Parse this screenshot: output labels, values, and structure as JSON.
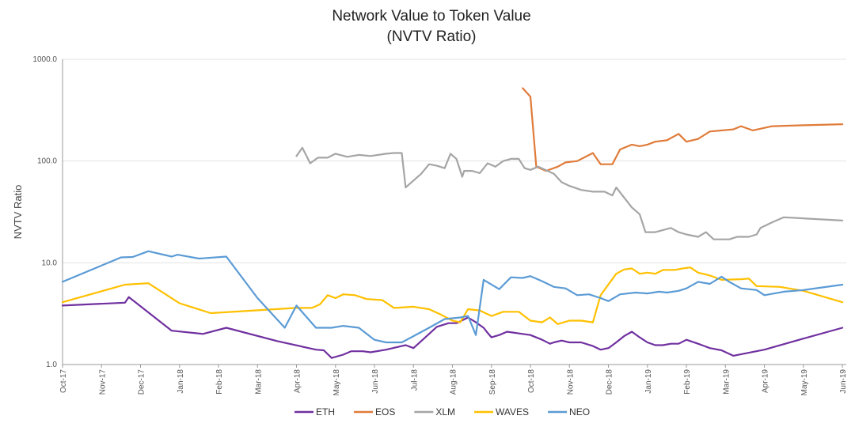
{
  "chart_data": {
    "type": "line",
    "title": "Network Value to Token Value",
    "subtitle": "(NVTV Ratio)",
    "ylabel": "NVTV Ratio",
    "xlabel": "",
    "yscale": "log",
    "ylim": [
      1.0,
      1000.0
    ],
    "yticks": [
      "1.0",
      "10.0",
      "100.0",
      "1000.0"
    ],
    "x_categories": [
      "Oct-17",
      "Nov-17",
      "Dec-17",
      "Jan-18",
      "Feb-18",
      "Mar-18",
      "Apr-18",
      "May-18",
      "Jun-18",
      "Jul-18",
      "Aug-18",
      "Sep-18",
      "Oct-18",
      "Nov-18",
      "Dec-18",
      "Jan-19",
      "Feb-19",
      "Mar-19",
      "Apr-19",
      "May-19",
      "Jun-19"
    ],
    "legend_position": "bottom",
    "series": [
      {
        "name": "ETH",
        "color": "#7030a0",
        "points": [
          [
            0,
            3.8
          ],
          [
            1.6,
            4.05
          ],
          [
            1.7,
            4.6
          ],
          [
            2.8,
            2.15
          ],
          [
            3.6,
            2.0
          ],
          [
            4.2,
            2.3
          ],
          [
            5.5,
            1.7
          ],
          [
            6.5,
            1.4
          ],
          [
            6.7,
            1.38
          ],
          [
            6.9,
            1.16
          ],
          [
            7.2,
            1.25
          ],
          [
            7.4,
            1.35
          ],
          [
            7.7,
            1.35
          ],
          [
            7.9,
            1.32
          ],
          [
            8.3,
            1.4
          ],
          [
            8.8,
            1.55
          ],
          [
            9.0,
            1.45
          ],
          [
            9.2,
            1.7
          ],
          [
            9.4,
            2.0
          ],
          [
            9.6,
            2.35
          ],
          [
            9.9,
            2.55
          ],
          [
            10.1,
            2.55
          ],
          [
            10.4,
            2.9
          ],
          [
            10.6,
            2.6
          ],
          [
            10.8,
            2.3
          ],
          [
            10.9,
            2.05
          ],
          [
            11.0,
            1.85
          ],
          [
            11.2,
            1.95
          ],
          [
            11.4,
            2.1
          ],
          [
            11.8,
            2.0
          ],
          [
            12.0,
            1.95
          ],
          [
            12.3,
            1.75
          ],
          [
            12.5,
            1.6
          ],
          [
            12.6,
            1.65
          ],
          [
            12.8,
            1.72
          ],
          [
            13.0,
            1.65
          ],
          [
            13.3,
            1.65
          ],
          [
            13.6,
            1.52
          ],
          [
            13.8,
            1.4
          ],
          [
            14.0,
            1.45
          ],
          [
            14.2,
            1.65
          ],
          [
            14.4,
            1.9
          ],
          [
            14.6,
            2.1
          ],
          [
            14.8,
            1.85
          ],
          [
            15.0,
            1.65
          ],
          [
            15.2,
            1.55
          ],
          [
            15.4,
            1.55
          ],
          [
            15.6,
            1.6
          ],
          [
            15.8,
            1.6
          ],
          [
            16.0,
            1.75
          ],
          [
            16.3,
            1.6
          ],
          [
            16.6,
            1.45
          ],
          [
            16.9,
            1.38
          ],
          [
            17.2,
            1.22
          ],
          [
            18.0,
            1.4
          ],
          [
            19.0,
            1.8
          ],
          [
            20.0,
            2.3
          ]
        ]
      },
      {
        "name": "EOS",
        "color": "#e07b39",
        "points": [
          [
            11.8,
            520
          ],
          [
            12.0,
            430
          ],
          [
            12.15,
            88
          ],
          [
            12.4,
            80
          ],
          [
            12.7,
            88
          ],
          [
            12.9,
            97
          ],
          [
            13.2,
            100
          ],
          [
            13.6,
            120
          ],
          [
            13.8,
            93
          ],
          [
            14.1,
            93
          ],
          [
            14.3,
            130
          ],
          [
            14.6,
            145
          ],
          [
            14.8,
            140
          ],
          [
            15.0,
            145
          ],
          [
            15.2,
            155
          ],
          [
            15.5,
            160
          ],
          [
            15.8,
            185
          ],
          [
            16.0,
            155
          ],
          [
            16.3,
            165
          ],
          [
            16.6,
            195
          ],
          [
            17.2,
            205
          ],
          [
            17.4,
            220
          ],
          [
            17.7,
            200
          ],
          [
            18.2,
            220
          ],
          [
            19.0,
            225
          ],
          [
            20.0,
            230
          ]
        ]
      },
      {
        "name": "XLM",
        "color": "#a5a5a5",
        "points": [
          [
            6.0,
            112
          ],
          [
            6.15,
            135
          ],
          [
            6.35,
            95
          ],
          [
            6.55,
            108
          ],
          [
            6.8,
            108
          ],
          [
            7.0,
            118
          ],
          [
            7.3,
            110
          ],
          [
            7.6,
            115
          ],
          [
            7.9,
            112
          ],
          [
            8.3,
            118
          ],
          [
            8.5,
            120
          ],
          [
            8.7,
            120
          ],
          [
            8.8,
            55
          ],
          [
            9.2,
            75
          ],
          [
            9.4,
            93
          ],
          [
            9.6,
            90
          ],
          [
            9.8,
            85
          ],
          [
            9.95,
            118
          ],
          [
            10.1,
            105
          ],
          [
            10.25,
            70
          ],
          [
            10.3,
            80
          ],
          [
            10.5,
            80
          ],
          [
            10.7,
            76
          ],
          [
            10.9,
            95
          ],
          [
            11.1,
            88
          ],
          [
            11.3,
            100
          ],
          [
            11.5,
            105
          ],
          [
            11.7,
            105
          ],
          [
            11.85,
            85
          ],
          [
            12.0,
            82
          ],
          [
            12.2,
            88
          ],
          [
            12.6,
            75
          ],
          [
            12.8,
            62
          ],
          [
            13.0,
            57
          ],
          [
            13.3,
            52
          ],
          [
            13.6,
            50
          ],
          [
            13.9,
            50
          ],
          [
            14.1,
            46
          ],
          [
            14.2,
            55
          ],
          [
            14.6,
            35
          ],
          [
            14.8,
            30
          ],
          [
            14.95,
            20
          ],
          [
            15.2,
            20
          ],
          [
            15.4,
            21
          ],
          [
            15.6,
            22
          ],
          [
            15.8,
            20
          ],
          [
            16.0,
            19
          ],
          [
            16.3,
            18
          ],
          [
            16.5,
            20
          ],
          [
            16.7,
            17
          ],
          [
            16.9,
            17
          ],
          [
            17.1,
            17
          ],
          [
            17.3,
            18
          ],
          [
            17.6,
            18
          ],
          [
            17.8,
            19
          ],
          [
            17.9,
            22
          ],
          [
            18.2,
            25
          ],
          [
            18.5,
            28
          ],
          [
            20.0,
            26
          ]
        ]
      },
      {
        "name": "WAVES",
        "color": "#ffc000",
        "points": [
          [
            0,
            4.1
          ],
          [
            1.6,
            6.1
          ],
          [
            2.2,
            6.3
          ],
          [
            3.0,
            4.0
          ],
          [
            3.8,
            3.2
          ],
          [
            6.0,
            3.6
          ],
          [
            6.4,
            3.6
          ],
          [
            6.6,
            3.9
          ],
          [
            6.8,
            4.8
          ],
          [
            7.0,
            4.5
          ],
          [
            7.2,
            4.9
          ],
          [
            7.5,
            4.8
          ],
          [
            7.8,
            4.4
          ],
          [
            8.2,
            4.3
          ],
          [
            8.5,
            3.6
          ],
          [
            9.0,
            3.7
          ],
          [
            9.4,
            3.5
          ],
          [
            9.7,
            3.1
          ],
          [
            10.0,
            2.7
          ],
          [
            10.2,
            2.6
          ],
          [
            10.4,
            3.5
          ],
          [
            10.7,
            3.4
          ],
          [
            11.0,
            3.0
          ],
          [
            11.3,
            3.3
          ],
          [
            11.7,
            3.3
          ],
          [
            12.0,
            2.7
          ],
          [
            12.3,
            2.6
          ],
          [
            12.5,
            2.9
          ],
          [
            12.7,
            2.5
          ],
          [
            13.0,
            2.7
          ],
          [
            13.3,
            2.7
          ],
          [
            13.6,
            2.6
          ],
          [
            13.8,
            4.8
          ],
          [
            14.2,
            7.8
          ],
          [
            14.4,
            8.6
          ],
          [
            14.6,
            8.8
          ],
          [
            14.8,
            7.8
          ],
          [
            15.0,
            8.0
          ],
          [
            15.2,
            7.8
          ],
          [
            15.4,
            8.5
          ],
          [
            15.7,
            8.5
          ],
          [
            15.9,
            8.8
          ],
          [
            16.1,
            9.0
          ],
          [
            16.3,
            8.0
          ],
          [
            16.6,
            7.5
          ],
          [
            16.9,
            6.8
          ],
          [
            17.4,
            6.9
          ],
          [
            17.6,
            7.0
          ],
          [
            17.8,
            5.9
          ],
          [
            18.4,
            5.8
          ],
          [
            19.0,
            5.3
          ],
          [
            20.0,
            4.1
          ]
        ]
      },
      {
        "name": "NEO",
        "color": "#5b9bd5",
        "points": [
          [
            0,
            6.5
          ],
          [
            1.5,
            11.3
          ],
          [
            1.8,
            11.4
          ],
          [
            2.2,
            13.0
          ],
          [
            2.8,
            11.5
          ],
          [
            2.95,
            12.0
          ],
          [
            3.5,
            11.0
          ],
          [
            4.2,
            11.5
          ],
          [
            5.0,
            4.5
          ],
          [
            5.7,
            2.3
          ],
          [
            6.0,
            3.8
          ],
          [
            6.5,
            2.3
          ],
          [
            6.9,
            2.3
          ],
          [
            7.2,
            2.4
          ],
          [
            7.6,
            2.3
          ],
          [
            8.0,
            1.75
          ],
          [
            8.3,
            1.65
          ],
          [
            8.7,
            1.65
          ],
          [
            9.0,
            1.9
          ],
          [
            9.4,
            2.3
          ],
          [
            9.8,
            2.8
          ],
          [
            10.2,
            2.9
          ],
          [
            10.4,
            3.0
          ],
          [
            10.6,
            1.95
          ],
          [
            10.8,
            6.8
          ],
          [
            11.2,
            5.5
          ],
          [
            11.5,
            7.2
          ],
          [
            11.8,
            7.1
          ],
          [
            12.0,
            7.4
          ],
          [
            12.3,
            6.6
          ],
          [
            12.6,
            5.8
          ],
          [
            12.9,
            5.6
          ],
          [
            13.2,
            4.8
          ],
          [
            13.5,
            4.9
          ],
          [
            13.8,
            4.5
          ],
          [
            14.0,
            4.2
          ],
          [
            14.3,
            4.9
          ],
          [
            14.7,
            5.1
          ],
          [
            15.0,
            5.0
          ],
          [
            15.3,
            5.2
          ],
          [
            15.5,
            5.1
          ],
          [
            15.8,
            5.3
          ],
          [
            16.0,
            5.6
          ],
          [
            16.3,
            6.5
          ],
          [
            16.6,
            6.2
          ],
          [
            16.9,
            7.3
          ],
          [
            17.1,
            6.5
          ],
          [
            17.4,
            5.6
          ],
          [
            17.8,
            5.4
          ],
          [
            18.0,
            4.8
          ],
          [
            18.5,
            5.2
          ],
          [
            19.0,
            5.4
          ],
          [
            20.0,
            6.1
          ]
        ]
      }
    ]
  }
}
